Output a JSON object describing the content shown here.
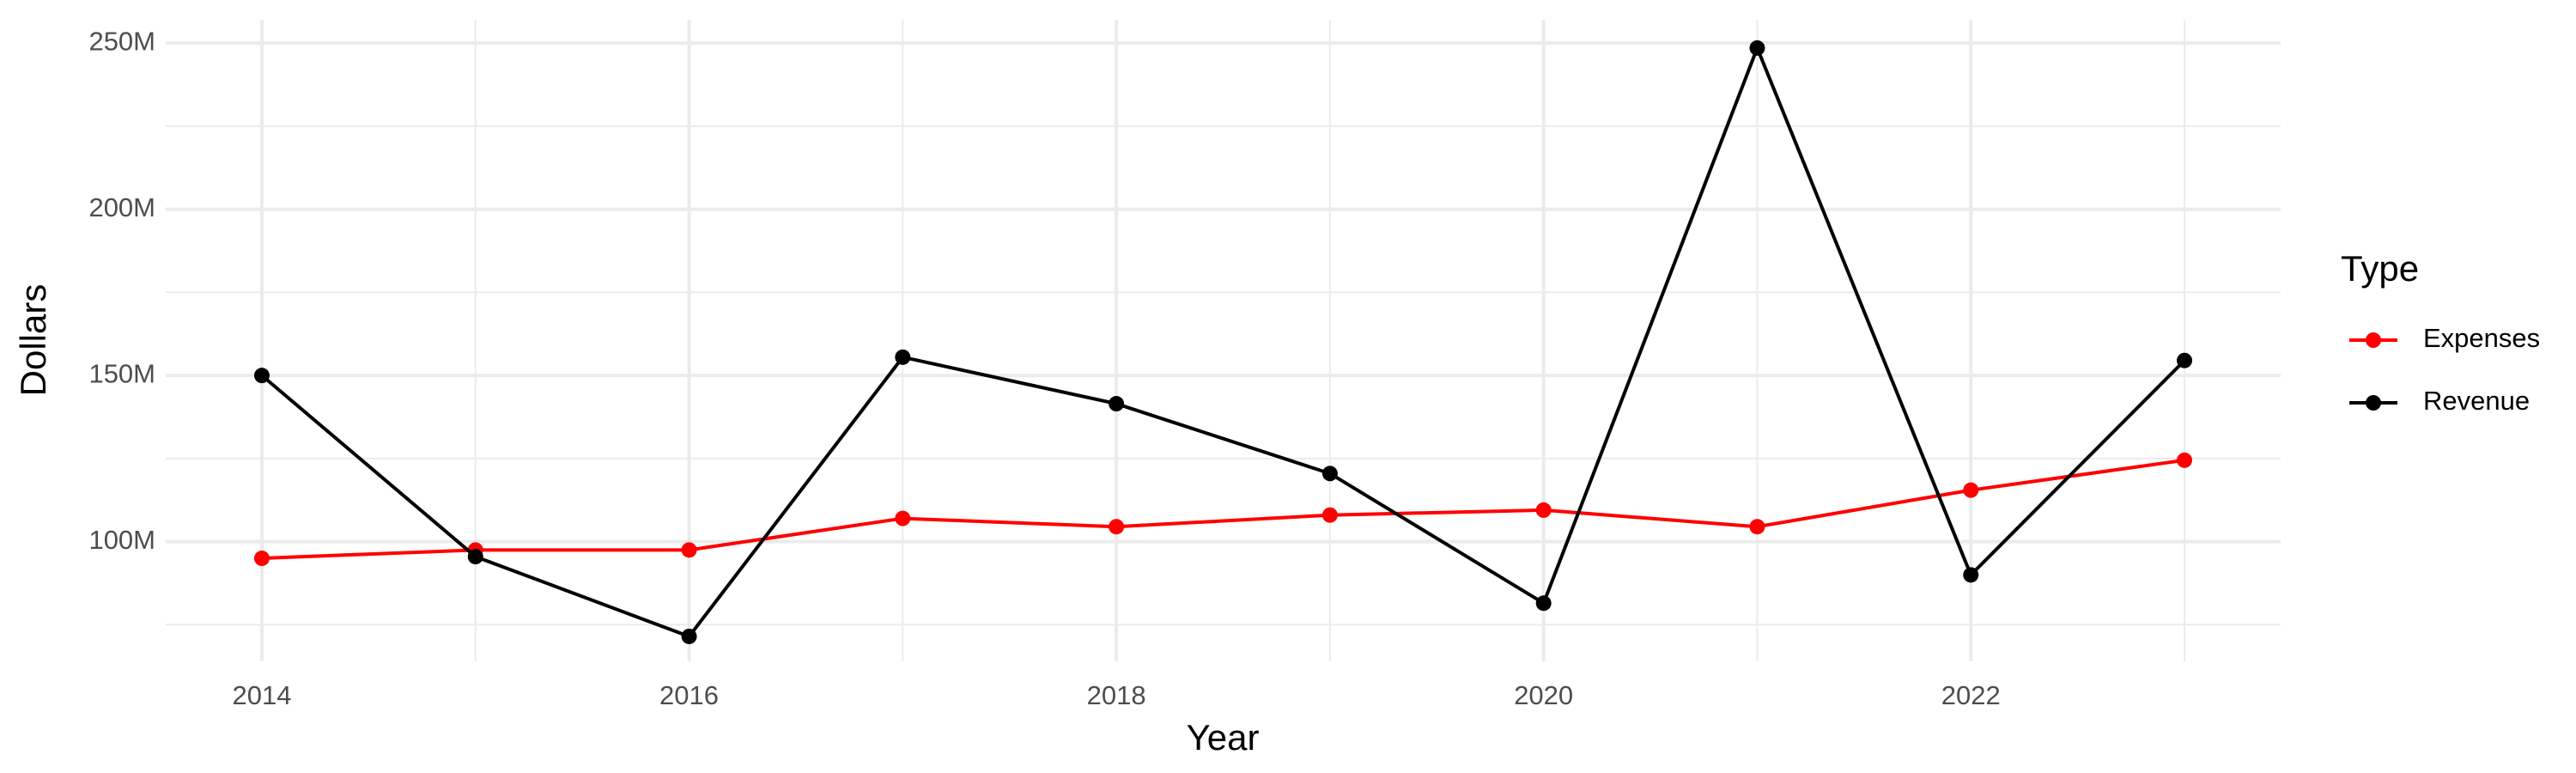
{
  "chart_data": {
    "type": "line",
    "x_label": "Year",
    "y_label": "Dollars",
    "legend_title": "Type",
    "legend_position": "right",
    "x": [
      2014,
      2015,
      2016,
      2017,
      2018,
      2019,
      2020,
      2021,
      2022,
      2023
    ],
    "series": [
      {
        "name": "Expenses",
        "color": "#ff0000",
        "values": [
          95000000,
          97500000,
          97500000,
          107000000,
          104500000,
          108000000,
          109500000,
          104500000,
          115500000,
          124500000
        ]
      },
      {
        "name": "Revenue",
        "color": "#000000",
        "values": [
          150000000,
          95500000,
          71500000,
          155500000,
          141500000,
          120500000,
          81500000,
          248500000,
          90000000,
          154500000
        ]
      }
    ],
    "xlim": [
      2013.55,
      2023.45
    ],
    "xticks": [
      2014,
      2016,
      2018,
      2020,
      2022
    ],
    "ylim": [
      64000000,
      257000000
    ],
    "yticks": [
      {
        "value": 100000000,
        "label": "100M"
      },
      {
        "value": 150000000,
        "label": "150M"
      },
      {
        "value": 200000000,
        "label": "200M"
      },
      {
        "value": 250000000,
        "label": "250M"
      }
    ],
    "grid": true
  }
}
